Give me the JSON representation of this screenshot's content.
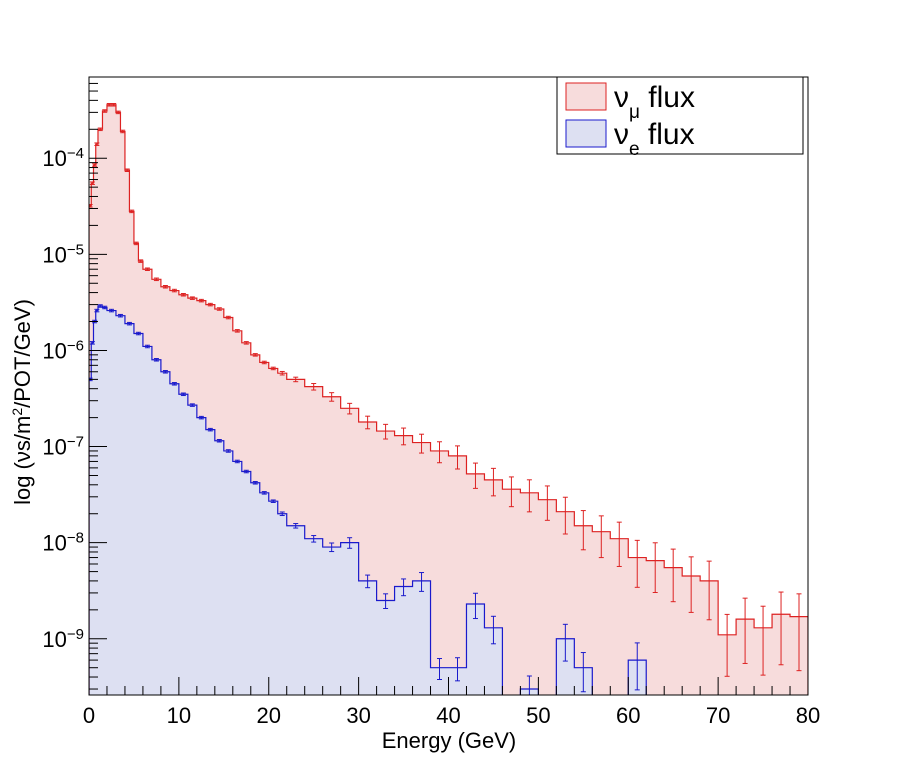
{
  "chart_data": {
    "type": "line",
    "title": "",
    "xlabel": "Energy (GeV)",
    "ylabel": "log (νs/m²/POT/GeV)",
    "ylabel_parts": {
      "prefix": "log (νs/m",
      "sup": "2",
      "suffix": "/POT/GeV)"
    },
    "xlim": [
      0,
      80
    ],
    "ylim": [
      2.6e-10,
      0.0007
    ],
    "y_scale": "log",
    "grid": false,
    "legend_position": "top-right",
    "x_ticks": [
      0,
      10,
      20,
      30,
      40,
      50,
      60,
      70,
      80
    ],
    "y_ticks": [
      {
        "value": 1e-09,
        "base": "10",
        "exp": "−9"
      },
      {
        "value": 1e-08,
        "base": "10",
        "exp": "−8"
      },
      {
        "value": 1e-07,
        "base": "10",
        "exp": "−7"
      },
      {
        "value": 1e-06,
        "base": "10",
        "exp": "−6"
      },
      {
        "value": 1e-05,
        "base": "10",
        "exp": "−5"
      },
      {
        "value": 0.0001,
        "base": "10",
        "exp": "−4"
      }
    ],
    "series": [
      {
        "name": "ν_μ flux",
        "legend": {
          "symbol": "ν",
          "sub": "μ",
          "text": " flux"
        },
        "color": "#dd2222",
        "fill": "#f7dcdc",
        "x": [
          0,
          0.25,
          0.5,
          0.75,
          1,
          1.5,
          2,
          2.5,
          3,
          3.5,
          4,
          4.5,
          5,
          5.5,
          6,
          7,
          8,
          9,
          10,
          11,
          12,
          13,
          14,
          15,
          16,
          17,
          18,
          19,
          20,
          21,
          22,
          24,
          26,
          28,
          30,
          32,
          34,
          36,
          38,
          40,
          42,
          44,
          46,
          48,
          50,
          52,
          54,
          56,
          58,
          60,
          62,
          64,
          66,
          68,
          70,
          72,
          74,
          76,
          78
        ],
        "y": [
          3.2e-05,
          5.5e-05,
          8.5e-05,
          0.00014,
          0.0002,
          0.00031,
          0.00036,
          0.00036,
          0.0003,
          0.00019,
          7.5e-05,
          2.8e-05,
          1.3e-05,
          8.5e-06,
          7e-06,
          5.5e-06,
          4.6e-06,
          4.2e-06,
          3.8e-06,
          3.5e-06,
          3.3e-06,
          3e-06,
          2.7e-06,
          2.2e-06,
          1.6e-06,
          1.2e-06,
          9e-07,
          7.5e-07,
          6.5e-07,
          5.8e-07,
          5e-07,
          4.2e-07,
          3.3e-07,
          2.5e-07,
          1.8e-07,
          1.45e-07,
          1.3e-07,
          1.1e-07,
          9e-08,
          8e-08,
          5.2e-08,
          4.5e-08,
          3.6e-08,
          3.3e-08,
          2.8e-08,
          2.1e-08,
          1.5e-08,
          1.3e-08,
          1.1e-08,
          7e-09,
          6.5e-09,
          5.5e-09,
          4.5e-09,
          4e-09,
          1.1e-09,
          1.6e-09,
          1.3e-09,
          1.8e-09,
          1.7e-09
        ]
      },
      {
        "name": "ν_e flux",
        "legend": {
          "symbol": "ν",
          "sub": "e",
          "text": " flux"
        },
        "color": "#1a1acc",
        "fill": "#dde0f2",
        "x": [
          0,
          0.25,
          0.5,
          0.75,
          1,
          1.5,
          2,
          3,
          4,
          5,
          6,
          7,
          8,
          9,
          10,
          11,
          12,
          13,
          14,
          15,
          16,
          17,
          18,
          19,
          20,
          21,
          22,
          24,
          26,
          28,
          30,
          32,
          34,
          36,
          38,
          40,
          42,
          44,
          46,
          48,
          50,
          52,
          54,
          56,
          58,
          60,
          62
        ],
        "y": [
          5e-07,
          1.2e-06,
          2e-06,
          2.6e-06,
          2.9e-06,
          2.8e-06,
          2.6e-06,
          2.3e-06,
          1.9e-06,
          1.5e-06,
          1.1e-06,
          8e-07,
          6e-07,
          4.5e-07,
          3.5e-07,
          2.7e-07,
          2e-07,
          1.5e-07,
          1.15e-07,
          9e-08,
          7e-08,
          5.5e-08,
          4.2e-08,
          3.3e-08,
          2.7e-08,
          2e-08,
          1.5e-08,
          1.1e-08,
          9e-09,
          1e-08,
          4e-09,
          2.5e-09,
          3.5e-09,
          4e-09,
          5e-10,
          5e-10,
          2.3e-09,
          1.3e-09,
          1.5e-10,
          3e-10,
          1.5e-10,
          1e-09,
          5e-10,
          1.5e-10,
          1.5e-10,
          6e-10,
          1.5e-10
        ]
      }
    ]
  }
}
